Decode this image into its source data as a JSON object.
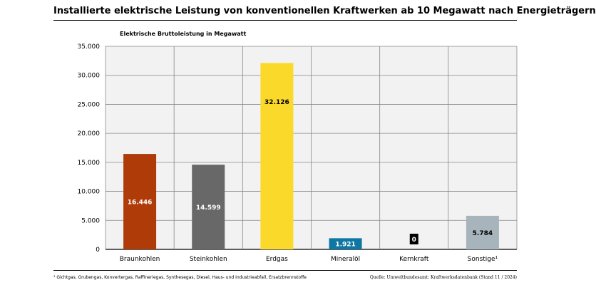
{
  "title": "Installierte elektrische Leistung von konventionellen Kraftwerken ab 10 Megawatt nach Energieträgern",
  "footnote": "¹ Gichtgas, Grubengas, Konvertergas, Raffineriegas, Synthesegas, Diesel, Haus- und Industrieabfall, Ersatzbrennstoffe",
  "source": "Quelle: Umweltbundesamt: Kraftwerksdatenbank (Stand 11 / 2024)",
  "chart_data": {
    "type": "bar",
    "ylabel": "Elektrische Bruttoleistung in Megawatt",
    "xlabel": "",
    "ylim": [
      0,
      35000
    ],
    "yticks": [
      0,
      5000,
      10000,
      15000,
      20000,
      25000,
      30000,
      35000
    ],
    "ytick_labels": [
      "0",
      "5.000",
      "10.000",
      "15.000",
      "20.000",
      "25.000",
      "30.000",
      "35.000"
    ],
    "grid": true,
    "categories": [
      "Braunkohlen",
      "Steinkohlen",
      "Erdgas",
      "Mineralöl",
      "Kernkraft",
      "Sonstige¹"
    ],
    "values": [
      16446,
      14599,
      32126,
      1921,
      0,
      5784
    ],
    "value_labels": [
      "16.446",
      "14.599",
      "32.126",
      "1.921",
      "0",
      "5.784"
    ],
    "colors": [
      "#ae3b08",
      "#686868",
      "#fbd92b",
      "#0f77a3",
      "#000000",
      "#a8b4bc"
    ],
    "label_colors": [
      "#ffffff",
      "#ffffff",
      "#000000",
      "#ffffff",
      "#ffffff",
      "#000000"
    ]
  }
}
